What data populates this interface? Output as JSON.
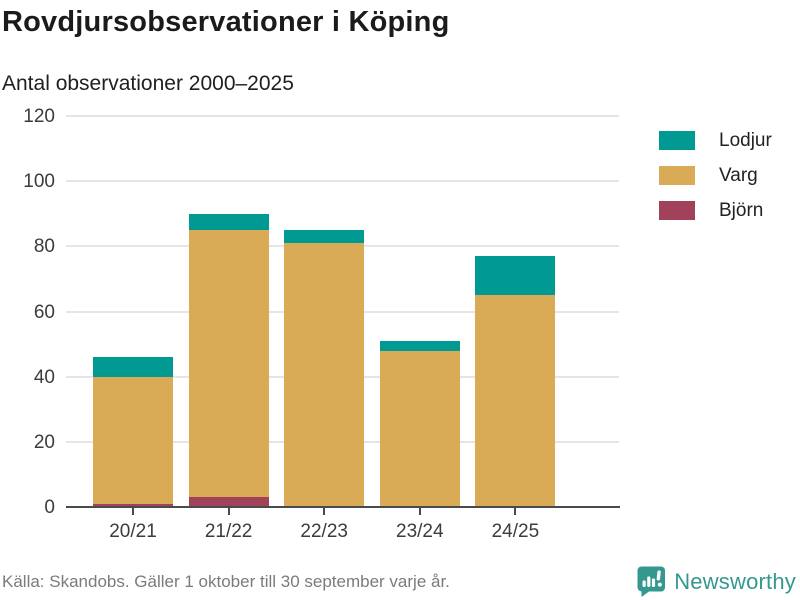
{
  "header": {
    "title": "Rovdjursobservationer i Köping",
    "subtitle": "Antal observationer 2000–2025"
  },
  "footer": {
    "source": "Källa: Skandobs. Gäller 1 oktober till 30 september varje år.",
    "brand": "Newsworthy"
  },
  "colors": {
    "lodjur": "#009a93",
    "varg": "#daab57",
    "bjorn": "#a1425a",
    "grid": "#e5e5e5",
    "axis": "#4a4a4a",
    "brand_teal": "#35988e"
  },
  "chart_data": {
    "type": "bar",
    "stacked": true,
    "title": "Rovdjursobservationer i Köping",
    "subtitle": "Antal observationer 2000–2025",
    "categories": [
      "20/21",
      "21/22",
      "22/23",
      "23/24",
      "24/25"
    ],
    "series": [
      {
        "name": "Björn",
        "color_key": "bjorn",
        "values": [
          1,
          3,
          0,
          0,
          0
        ]
      },
      {
        "name": "Varg",
        "color_key": "varg",
        "values": [
          39,
          82,
          81,
          48,
          65
        ]
      },
      {
        "name": "Lodjur",
        "color_key": "lodjur",
        "values": [
          6,
          5,
          4,
          3,
          12
        ]
      }
    ],
    "totals": [
      46,
      90,
      85,
      51,
      77
    ],
    "xlabel": "",
    "ylabel": "",
    "ylim": [
      0,
      120
    ],
    "yticks": [
      0,
      20,
      40,
      60,
      80,
      100,
      120
    ],
    "grid": true,
    "legend_position": "right",
    "legend_order": [
      "Lodjur",
      "Varg",
      "Björn"
    ]
  },
  "legend": {
    "items": [
      {
        "label": "Lodjur",
        "color_key": "lodjur"
      },
      {
        "label": "Varg",
        "color_key": "varg"
      },
      {
        "label": "Björn",
        "color_key": "bjorn"
      }
    ]
  }
}
